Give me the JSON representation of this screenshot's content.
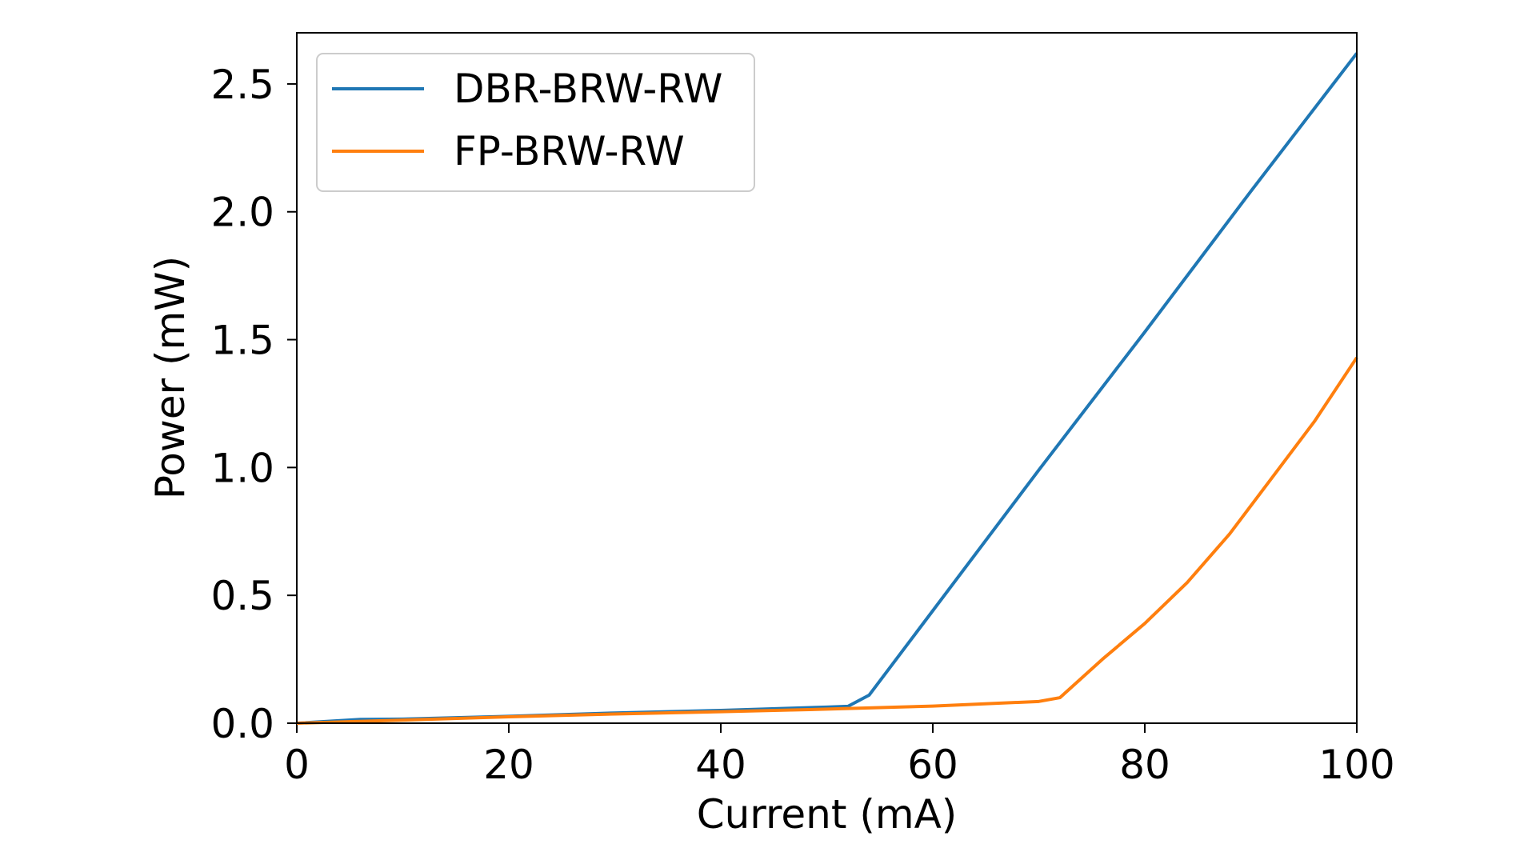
{
  "chart_data": {
    "type": "line",
    "title": "",
    "xlabel": "Current (mA)",
    "ylabel": "Power (mW)",
    "xlim": [
      0,
      100
    ],
    "ylim": [
      0,
      2.7
    ],
    "xticks": [
      0,
      20,
      40,
      60,
      80,
      100
    ],
    "xtick_labels": [
      "0",
      "20",
      "40",
      "60",
      "80",
      "100"
    ],
    "yticks": [
      0.0,
      0.5,
      1.0,
      1.5,
      2.0,
      2.5
    ],
    "ytick_labels": [
      "0.0",
      "0.5",
      "1.0",
      "1.5",
      "2.0",
      "2.5"
    ],
    "grid": false,
    "legend_position": "top-left",
    "series": [
      {
        "name": "DBR-BRW-RW",
        "color": "#1f77b4",
        "x": [
          0,
          6,
          10,
          20,
          30,
          40,
          50,
          52,
          54,
          60,
          70,
          80,
          90,
          100
        ],
        "y": [
          0.0,
          0.015,
          0.016,
          0.027,
          0.04,
          0.05,
          0.063,
          0.066,
          0.11,
          0.44,
          0.99,
          1.53,
          2.08,
          2.62
        ]
      },
      {
        "name": "FP-BRW-RW",
        "color": "#ff7f0e",
        "x": [
          0,
          10,
          20,
          30,
          40,
          50,
          60,
          70,
          72,
          76,
          80,
          84,
          88,
          92,
          96,
          100
        ],
        "y": [
          0.0,
          0.012,
          0.025,
          0.036,
          0.045,
          0.055,
          0.067,
          0.085,
          0.1,
          0.25,
          0.39,
          0.55,
          0.74,
          0.96,
          1.18,
          1.43
        ]
      }
    ]
  }
}
